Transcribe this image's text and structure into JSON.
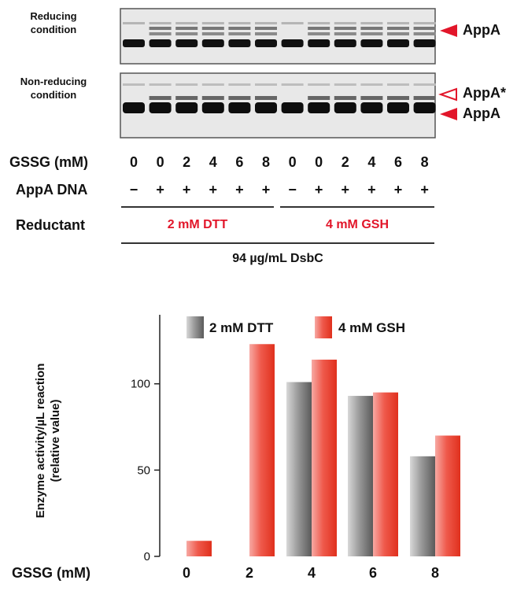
{
  "gel": {
    "reducing_label": "Reducing condition",
    "nonreducing_label": "Non-reducing condition",
    "appa_label": "AppA",
    "appa_star_label": "AppA*",
    "appa_label2": "AppA",
    "arrow_color": "#e2162a"
  },
  "table": {
    "gssg_label": "GSSG (mM)",
    "gssg_values": [
      "0",
      "0",
      "2",
      "4",
      "6",
      "8",
      "0",
      "0",
      "2",
      "4",
      "6",
      "8"
    ],
    "appa_dna_label": "AppA DNA",
    "appa_dna_values": [
      "−",
      "+",
      "+",
      "+",
      "+",
      "+",
      "−",
      "+",
      "+",
      "+",
      "+",
      "+"
    ],
    "reductant_label": "Reductant",
    "reductant_1": "2 mM DTT",
    "reductant_2": "4 mM GSH",
    "dsbc_label": "94 µg/mL DsbC"
  },
  "chart_data": {
    "type": "bar",
    "categories": [
      "0",
      "2",
      "4",
      "6",
      "8"
    ],
    "xlabel": "GSSG (mM)",
    "ylabel_line1": "Enzyme activity/µL reaction",
    "ylabel_line2": "(relative value)",
    "ylim": [
      0,
      140
    ],
    "yticks": [
      0,
      50,
      100
    ],
    "series": [
      {
        "name": "2 mM DTT",
        "color": "gray",
        "values": [
          0,
          0,
          101,
          93,
          58
        ]
      },
      {
        "name": "4 mM GSH",
        "color": "red",
        "values": [
          9,
          123,
          114,
          95,
          70
        ]
      }
    ],
    "legend_position": "top"
  }
}
